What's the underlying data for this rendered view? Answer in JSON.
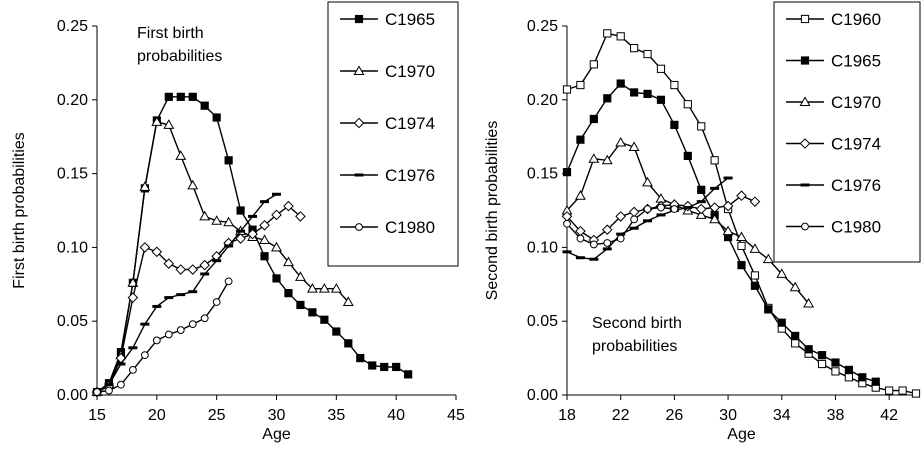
{
  "chart_data": [
    {
      "type": "line",
      "title": "",
      "annotation": [
        "First birth",
        "probabilities"
      ],
      "xlabel": "Age",
      "ylabel": "First birth probabilities",
      "xlim": [
        15,
        45
      ],
      "ylim": [
        0,
        0.25
      ],
      "xticks": [
        "15",
        "20",
        "25",
        "30",
        "35",
        "40",
        "45"
      ],
      "yticks": [
        "0.00",
        "0.05",
        "0.10",
        "0.15",
        "0.20",
        "0.25"
      ],
      "grid": false,
      "legend_position": "top-right",
      "series": [
        {
          "name": "C1965",
          "marker": "filled-square",
          "x": [
            15,
            16,
            17,
            18,
            19,
            20,
            21,
            22,
            23,
            24,
            25,
            26,
            27,
            28,
            29,
            30,
            31,
            32,
            33,
            34,
            35,
            36,
            37,
            38,
            39,
            40,
            41
          ],
          "y": [
            0.002,
            0.008,
            0.029,
            0.076,
            0.14,
            0.186,
            0.202,
            0.202,
            0.202,
            0.196,
            0.188,
            0.159,
            0.125,
            0.112,
            0.094,
            0.079,
            0.069,
            0.061,
            0.056,
            0.051,
            0.043,
            0.035,
            0.025,
            0.02,
            0.019,
            0.019,
            0.014
          ]
        },
        {
          "name": "C1970",
          "marker": "open-triangle",
          "x": [
            15,
            16,
            17,
            18,
            19,
            20,
            21,
            22,
            23,
            24,
            25,
            26,
            27,
            28,
            29,
            30,
            31,
            32,
            33,
            34,
            35,
            36
          ],
          "y": [
            0.002,
            0.007,
            0.027,
            0.076,
            0.141,
            0.185,
            0.183,
            0.162,
            0.142,
            0.121,
            0.118,
            0.117,
            0.111,
            0.107,
            0.105,
            0.1,
            0.09,
            0.08,
            0.072,
            0.072,
            0.072,
            0.063
          ]
        },
        {
          "name": "C1974",
          "marker": "open-diamond",
          "x": [
            15,
            16,
            17,
            18,
            19,
            20,
            21,
            22,
            23,
            24,
            25,
            26,
            27,
            28,
            29,
            30,
            31,
            32
          ],
          "y": [
            0.002,
            0.006,
            0.025,
            0.066,
            0.1,
            0.097,
            0.089,
            0.085,
            0.085,
            0.088,
            0.094,
            0.103,
            0.106,
            0.109,
            0.115,
            0.122,
            0.128,
            0.121
          ]
        },
        {
          "name": "C1976",
          "marker": "dash",
          "x": [
            15,
            16,
            17,
            18,
            19,
            20,
            21,
            22,
            23,
            24,
            25,
            26,
            27,
            28,
            29,
            30
          ],
          "y": [
            0.002,
            0.007,
            0.021,
            0.032,
            0.048,
            0.06,
            0.066,
            0.068,
            0.07,
            0.082,
            0.091,
            0.101,
            0.111,
            0.121,
            0.131,
            0.136
          ]
        },
        {
          "name": "C1980",
          "marker": "open-circle",
          "x": [
            15,
            16,
            17,
            18,
            19,
            20,
            21,
            22,
            23,
            24,
            25,
            26
          ],
          "y": [
            0.002,
            0.003,
            0.007,
            0.017,
            0.027,
            0.037,
            0.041,
            0.044,
            0.048,
            0.052,
            0.063,
            0.077
          ]
        }
      ]
    },
    {
      "type": "line",
      "title": "",
      "annotation": [
        "Second birth",
        "probabilities"
      ],
      "xlabel": "Age",
      "ylabel": "Second birth probabilities",
      "xlim": [
        18,
        44
      ],
      "ylim": [
        0,
        0.25
      ],
      "xticks": [
        "18",
        "22",
        "26",
        "30",
        "34",
        "38",
        "42"
      ],
      "yticks": [
        "0.00",
        "0.05",
        "0.10",
        "0.15",
        "0.20",
        "0.25"
      ],
      "grid": false,
      "legend_position": "top-right",
      "series": [
        {
          "name": "C1960",
          "marker": "open-square",
          "x": [
            18,
            19,
            20,
            21,
            22,
            23,
            24,
            25,
            26,
            27,
            28,
            29,
            30,
            31,
            32,
            33,
            34,
            35,
            36,
            37,
            38,
            39,
            40,
            41,
            42,
            43,
            44
          ],
          "y": [
            0.207,
            0.21,
            0.224,
            0.245,
            0.243,
            0.235,
            0.231,
            0.221,
            0.21,
            0.197,
            0.182,
            0.159,
            0.126,
            0.101,
            0.081,
            0.059,
            0.045,
            0.035,
            0.028,
            0.021,
            0.016,
            0.012,
            0.008,
            0.005,
            0.003,
            0.003,
            0.001
          ]
        },
        {
          "name": "C1965",
          "marker": "filled-square",
          "x": [
            18,
            19,
            20,
            21,
            22,
            23,
            24,
            25,
            26,
            27,
            28,
            29,
            30,
            31,
            32,
            33,
            34,
            35,
            36,
            37,
            38,
            39,
            40,
            41
          ],
          "y": [
            0.151,
            0.173,
            0.187,
            0.201,
            0.211,
            0.205,
            0.204,
            0.2,
            0.183,
            0.162,
            0.139,
            0.122,
            0.107,
            0.088,
            0.074,
            0.058,
            0.049,
            0.04,
            0.031,
            0.027,
            0.022,
            0.017,
            0.012,
            0.009
          ]
        },
        {
          "name": "C1970",
          "marker": "open-triangle",
          "x": [
            18,
            19,
            20,
            21,
            22,
            23,
            24,
            25,
            26,
            27,
            28,
            29,
            30,
            31,
            32,
            33,
            34,
            35,
            36
          ],
          "y": [
            0.125,
            0.135,
            0.16,
            0.159,
            0.171,
            0.168,
            0.144,
            0.133,
            0.129,
            0.125,
            0.122,
            0.119,
            0.111,
            0.107,
            0.099,
            0.092,
            0.082,
            0.073,
            0.062
          ]
        },
        {
          "name": "C1974",
          "marker": "open-diamond",
          "x": [
            18,
            19,
            20,
            21,
            22,
            23,
            24,
            25,
            26,
            27,
            28,
            29,
            30,
            31,
            32
          ],
          "y": [
            0.121,
            0.111,
            0.105,
            0.112,
            0.121,
            0.124,
            0.126,
            0.128,
            0.129,
            0.128,
            0.126,
            0.127,
            0.128,
            0.135,
            0.131
          ]
        },
        {
          "name": "C1976",
          "marker": "dash",
          "x": [
            18,
            19,
            20,
            21,
            22,
            23,
            24,
            25,
            26,
            27,
            28,
            29,
            30
          ],
          "y": [
            0.097,
            0.093,
            0.092,
            0.099,
            0.109,
            0.113,
            0.118,
            0.122,
            0.125,
            0.127,
            0.131,
            0.14,
            0.147
          ]
        },
        {
          "name": "C1980",
          "marker": "open-circle",
          "x": [
            18,
            19,
            20,
            21,
            22,
            23,
            24,
            25,
            26
          ],
          "y": [
            0.116,
            0.106,
            0.102,
            0.103,
            0.106,
            0.119,
            0.126,
            0.127,
            0.126
          ]
        }
      ]
    }
  ]
}
